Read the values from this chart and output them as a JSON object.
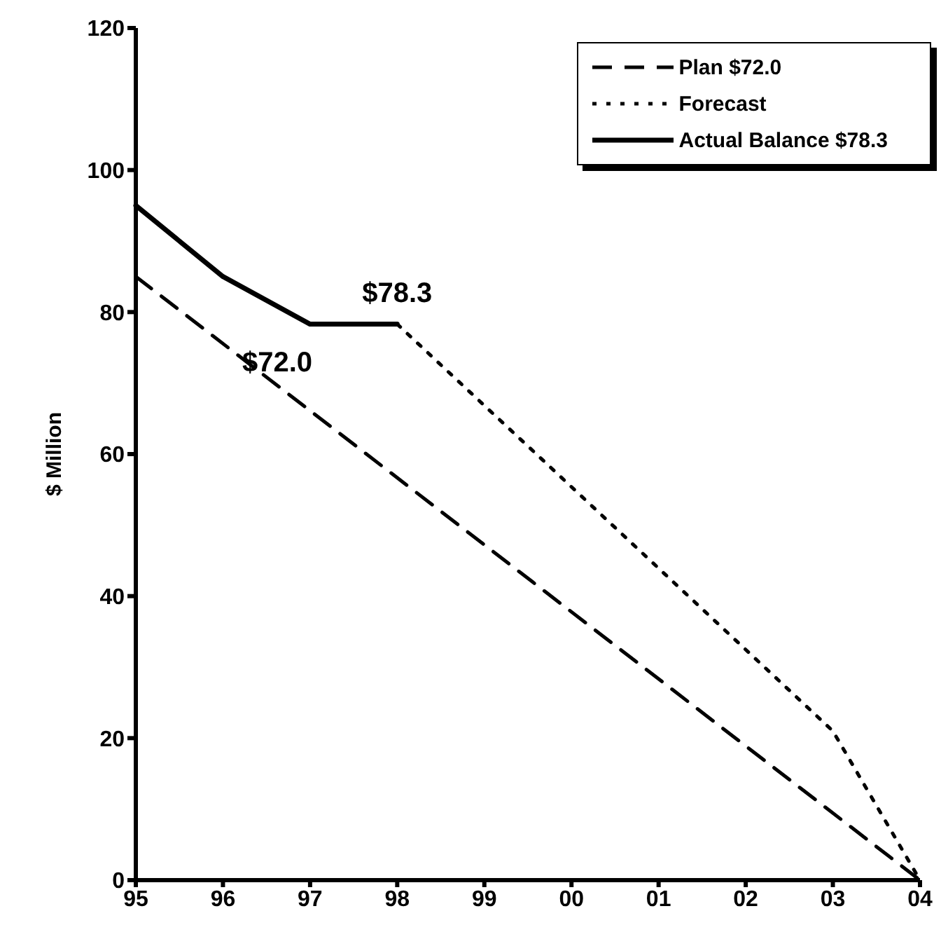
{
  "chart_data": {
    "type": "line",
    "ylabel": "$ Million",
    "categories": [
      "95",
      "96",
      "97",
      "98",
      "99",
      "00",
      "01",
      "02",
      "03",
      "04"
    ],
    "series": [
      {
        "name": "Plan $72.0",
        "color": "#000000",
        "line_style": "dashed",
        "values": [
          85,
          null,
          null,
          null,
          null,
          null,
          null,
          null,
          null,
          0
        ]
      },
      {
        "name": "Forecast",
        "color": "#000000",
        "line_style": "dotted",
        "values": [
          null,
          null,
          null,
          78.3,
          null,
          null,
          null,
          null,
          21,
          0
        ]
      },
      {
        "name": "Actual Balance $78.3",
        "color": "#000000",
        "line_style": "solid",
        "values": [
          95,
          85,
          78.3,
          78.3,
          null,
          null,
          null,
          null,
          null,
          null
        ]
      }
    ],
    "annotations": [
      {
        "text": "$78.3",
        "x": "98",
        "y": 78.3
      },
      "$72.0"
    ],
    "ylim": [
      0,
      120
    ],
    "yticks": [
      0,
      20,
      40,
      60,
      80,
      100,
      120
    ],
    "grid": false,
    "legend": "top right",
    "marker": "none"
  }
}
